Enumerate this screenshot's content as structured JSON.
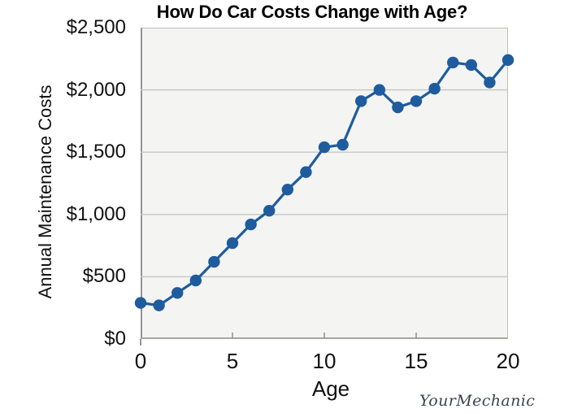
{
  "title": "How Do Car Costs Change with Age?",
  "y_axis": {
    "label": "Annual Maintenance Costs",
    "tick_labels": [
      "$0",
      "$500",
      "$1,000",
      "$1,500",
      "$2,000",
      "$2,500"
    ],
    "tick_values": [
      0,
      500,
      1000,
      1500,
      2000,
      2500
    ]
  },
  "x_axis": {
    "label": "Age",
    "tick_labels": [
      "0",
      "5",
      "10",
      "15",
      "20"
    ],
    "tick_values": [
      0,
      5,
      10,
      15,
      20
    ],
    "minor_tick_values": [
      5,
      10,
      15
    ]
  },
  "logo_text": "YourMechanic",
  "colors": {
    "line": "#1e5c9e",
    "plot_background": "#f4f4f2",
    "gridline": "#c6c6c4",
    "axis_line": "#949494",
    "plot_border": "#bebebc",
    "text": "#111111",
    "logo_text": "#3e434d"
  },
  "chart_data": {
    "type": "line",
    "title": "How Do Car Costs Change with Age?",
    "xlabel": "Age",
    "ylabel": "Annual Maintenance Costs",
    "x": [
      0,
      1,
      2,
      3,
      4,
      5,
      6,
      7,
      8,
      9,
      10,
      11,
      12,
      13,
      14,
      15,
      16,
      17,
      18,
      19,
      20
    ],
    "series": [
      {
        "name": "Annual Maintenance Costs",
        "values": [
          290,
          270,
          370,
          470,
          620,
          770,
          920,
          1030,
          1200,
          1340,
          1540,
          1560,
          1910,
          2000,
          1860,
          1910,
          2010,
          2220,
          2200,
          2060,
          2240
        ]
      }
    ],
    "xlim": [
      0,
      20
    ],
    "ylim": [
      0,
      2500
    ],
    "y_tick_step": 500,
    "x_tick_step": 5,
    "grid": "horizontal",
    "marker": "circle",
    "legend": false
  }
}
